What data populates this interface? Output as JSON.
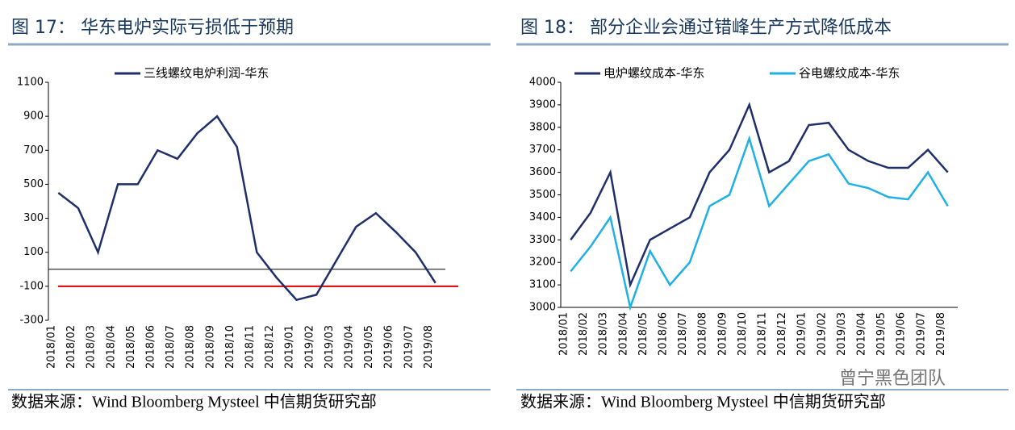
{
  "chart_data": [
    {
      "type": "line",
      "title": "图 17：  华东电炉实际亏损低于预期",
      "source": "数据来源：Wind Bloomberg Mysteel 中信期货研究部",
      "categories": [
        "2018/01",
        "2018/02",
        "2018/03",
        "2018/04",
        "2018/05",
        "2018/06",
        "2018/07",
        "2018/08",
        "2018/09",
        "2018/10",
        "2018/11",
        "2018/12",
        "2019/01",
        "2019/02",
        "2019/03",
        "2019/04",
        "2019/05",
        "2019/06",
        "2019/07",
        "2019/08"
      ],
      "series": [
        {
          "name": "三线螺纹电炉利润-华东",
          "color": "#1f2f6b",
          "values": [
            450,
            360,
            100,
            500,
            500,
            700,
            650,
            800,
            900,
            720,
            100,
            -50,
            -180,
            -150,
            50,
            250,
            330,
            220,
            100,
            -80
          ]
        }
      ],
      "ylim": [
        -300,
        1100
      ],
      "yticks": [
        -300,
        -100,
        100,
        300,
        500,
        700,
        900,
        1100
      ],
      "reference_line": {
        "value": -100,
        "color": "#e00000"
      }
    },
    {
      "type": "line",
      "title": "图 18：  部分企业会通过错峰生产方式降低成本",
      "source": "数据来源：Wind Bloomberg Mysteel 中信期货研究部",
      "categories": [
        "2018/01",
        "2018/02",
        "2018/03",
        "2018/04",
        "2018/05",
        "2018/06",
        "2018/07",
        "2018/08",
        "2018/09",
        "2018/10",
        "2018/11",
        "2018/12",
        "2019/01",
        "2019/02",
        "2019/03",
        "2019/04",
        "2019/05",
        "2019/06",
        "2019/07",
        "2019/08"
      ],
      "series": [
        {
          "name": "电炉螺纹成本-华东",
          "color": "#1f2f6b",
          "values": [
            3300,
            3420,
            3600,
            3100,
            3300,
            3350,
            3400,
            3600,
            3700,
            3900,
            3600,
            3650,
            3810,
            3820,
            3700,
            3650,
            3620,
            3620,
            3700,
            3600
          ]
        },
        {
          "name": "谷电螺纹成本-华东",
          "color": "#1fb0e6",
          "values": [
            3160,
            3270,
            3400,
            3000,
            3250,
            3100,
            3200,
            3450,
            3500,
            3750,
            3450,
            3550,
            3650,
            3680,
            3550,
            3530,
            3490,
            3480,
            3600,
            3450
          ]
        }
      ],
      "ylim": [
        3000,
        4000
      ],
      "yticks": [
        3000,
        3100,
        3200,
        3300,
        3400,
        3500,
        3600,
        3700,
        3800,
        3900,
        4000
      ]
    }
  ],
  "watermark": "曾宁黑色团队"
}
